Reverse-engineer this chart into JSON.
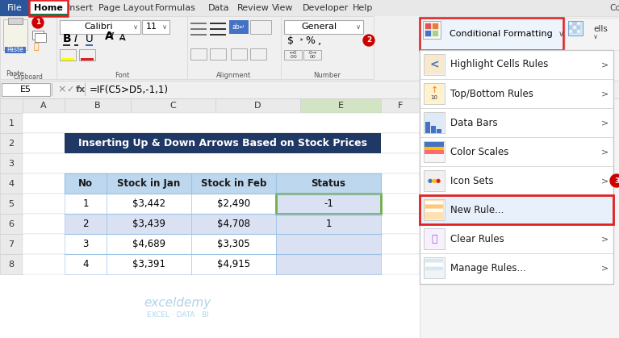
{
  "title": "Inserting Up & Down Arrows Based on Stock Prices",
  "title_bg": "#1F3864",
  "title_color": "#FFFFFF",
  "formula_bar_cell": "E5",
  "formula_bar_formula": "=IF(C5>D5,-1,1)",
  "table_headers": [
    "No",
    "Stock in Jan",
    "Stock in Feb",
    "Status"
  ],
  "table_data": [
    [
      "1",
      "$3,442",
      "$2,490",
      "-1"
    ],
    [
      "2",
      "$3,439",
      "$4,708",
      "1"
    ],
    [
      "3",
      "$4,689",
      "$3,305",
      ""
    ],
    [
      "4",
      "$3,391",
      "$4,915",
      ""
    ]
  ],
  "dropdown_items": [
    "Highlight Cells Rules",
    "Top/Bottom Rules",
    "Data Bars",
    "Color Scales",
    "Icon Sets",
    "New Rule...",
    "Clear Rules",
    "Manage Rules..."
  ],
  "dropdown_highlighted": "New Rule...",
  "cf_label": "Conditional Formatting",
  "ribbon_bg": "#F0F0F0",
  "white": "#FFFFFF",
  "dropdown_bg": "#FFFFFF",
  "dropdown_border": "#C8C8C8",
  "table_header_bg": "#BDD7EE",
  "table_border": "#9CC2E5",
  "status_col_bg": "#D9E1F2",
  "active_cell_border": "#70AD47",
  "red_color": "#E02020",
  "badge_color": "#CC0000",
  "badge_text_color": "#FFFFFF",
  "watermark_color": "#B0D4E8",
  "row2_bg": "#D9E1F2",
  "file_tab_bg": "#2B579A",
  "home_tab_underline": "#217346",
  "cf_highlight_bg": "#EEF4FB",
  "new_rule_bg": "#E8F0FB",
  "menu_tab_bg": "#F0F0F0",
  "menu_bar_bg": "#E8E8E8",
  "right_panel_bg": "#F4F4F4",
  "col_header_bg": "#EAEAEA",
  "col_header_active": "#D3E4C5",
  "row_header_bg": "#EAEAEA",
  "grid_line": "#D0D0D0",
  "group_label_color": "#555555",
  "separator_color": "#D8D8D8"
}
